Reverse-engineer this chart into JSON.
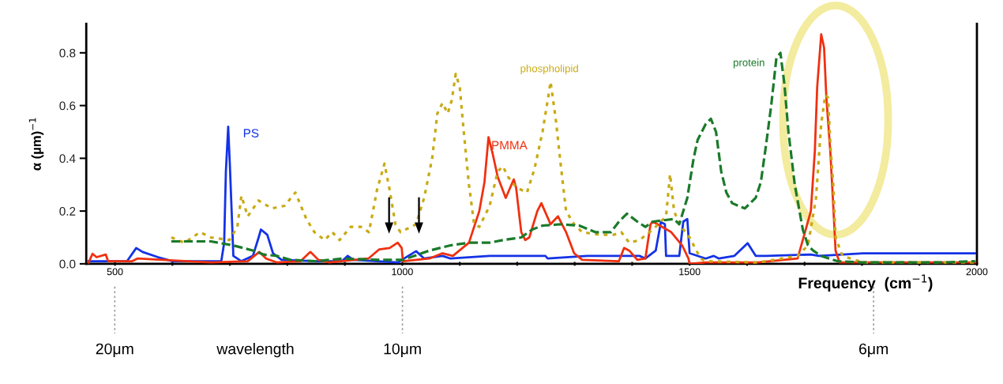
{
  "chart_data": {
    "type": "line",
    "xlabel": "Frequency  (cm$^{−1}$)",
    "ylabel": "α (µm)$^{−1}$",
    "xlim": [
      450,
      2000
    ],
    "ylim": [
      0,
      0.91
    ],
    "xticks": [
      500,
      {
        "value": 600,
        "label": null
      },
      {
        "value": 700,
        "label": null
      },
      {
        "value": 800,
        "label": null
      },
      {
        "value": 900,
        "label": null
      },
      1000,
      {
        "value": 1100,
        "label": null
      },
      {
        "value": 1200,
        "label": null
      },
      {
        "value": 1300,
        "label": null
      },
      {
        "value": 1400,
        "label": null
      },
      1500,
      {
        "value": 1600,
        "label": null
      },
      {
        "value": 1700,
        "label": null
      },
      {
        "value": 1800,
        "label": null
      },
      {
        "value": 1900,
        "label": null
      },
      2000
    ],
    "yticks": [
      {
        "value": 0,
        "label": "0.0"
      },
      {
        "value": 0.2,
        "label": "0.2"
      },
      {
        "value": 0.4,
        "label": "0.4"
      },
      {
        "value": 0.6,
        "label": "0.6"
      },
      {
        "value": 0.8,
        "label": "0.8"
      }
    ],
    "annotations": [
      "20μm",
      "wavelength",
      "10μm",
      "6μm"
    ],
    "grid": false,
    "marker": "none",
    "series": [
      {
        "name": "PS",
        "color": "#1432e6",
        "line_style": "solid",
        "x": [
          454,
          521,
          537,
          548,
          575,
          600,
          685,
          690,
          693,
          697,
          700,
          703,
          706,
          720,
          740,
          750,
          754,
          765,
          775,
          790,
          850,
          895,
          905,
          915,
          933,
          992,
          1024,
          1038,
          1070,
          1084,
          1152,
          1249,
          1253,
          1322,
          1413,
          1423,
          1441,
          1450,
          1457,
          1459,
          1482,
          1489,
          1496,
          1500,
          1528,
          1542,
          1551,
          1578,
          1601,
          1615,
          1633,
          1711,
          1725,
          1802,
          1940,
          1997
        ],
        "values": [
          0.01,
          0.01,
          0.06,
          0.045,
          0.025,
          0.01,
          0.01,
          0.08,
          0.35,
          0.52,
          0.37,
          0.2,
          0.03,
          0.01,
          0.03,
          0.1,
          0.13,
          0.11,
          0.04,
          0.015,
          0.01,
          0.01,
          0.03,
          0.015,
          0.013,
          0.005,
          0.048,
          0.02,
          0.03,
          0.02,
          0.03,
          0.03,
          0.02,
          0.03,
          0.03,
          0.02,
          0.05,
          0.158,
          0.15,
          0.03,
          0.03,
          0.16,
          0.17,
          0.04,
          0.02,
          0.03,
          0.02,
          0.03,
          0.078,
          0.03,
          0.03,
          0.035,
          0.03,
          0.04,
          0.04,
          0.04
        ]
      },
      {
        "name": "PMMA",
        "color": "#f03010",
        "line_style": "solid",
        "x": [
          454,
          461,
          468,
          484,
          488,
          530,
          539,
          667,
          731,
          751,
          763,
          782,
          823,
          840,
          854,
          873,
          941,
          960,
          978,
          992,
          999,
          1001,
          1047,
          1070,
          1088,
          1116,
          1134,
          1143,
          1150,
          1157,
          1166,
          1180,
          1194,
          1198,
          1207,
          1214,
          1221,
          1235,
          1242,
          1258,
          1271,
          1285,
          1299,
          1313,
          1377,
          1386,
          1395,
          1409,
          1423,
          1432,
          1436,
          1468,
          1487,
          1498,
          1500,
          1528,
          1619,
          1688,
          1711,
          1718,
          1722,
          1729,
          1734,
          1738,
          1745,
          1750,
          1754,
          1761,
          1997
        ],
        "values": [
          0.005,
          0.038,
          0.025,
          0.035,
          0.01,
          0.01,
          0.02,
          0.005,
          0.01,
          0.045,
          0.02,
          0.005,
          0.01,
          0.045,
          0.015,
          0.005,
          0.02,
          0.055,
          0.06,
          0.08,
          0.06,
          0.01,
          0.02,
          0.04,
          0.03,
          0.08,
          0.2,
          0.31,
          0.48,
          0.42,
          0.33,
          0.25,
          0.32,
          0.29,
          0.12,
          0.09,
          0.1,
          0.2,
          0.23,
          0.15,
          0.18,
          0.12,
          0.04,
          0.015,
          0.01,
          0.06,
          0.05,
          0.015,
          0.02,
          0.15,
          0.16,
          0.12,
          0.07,
          0.02,
          0.0,
          0.005,
          0.005,
          0.02,
          0.2,
          0.43,
          0.67,
          0.87,
          0.82,
          0.63,
          0.42,
          0.22,
          0.05,
          0.005,
          0.005
        ]
      },
      {
        "name": "phospholipid",
        "color": "#c8aa14",
        "line_style": "dotted",
        "x": [
          598,
          621,
          648,
          667,
          699,
          713,
          720,
          731,
          750,
          773,
          795,
          814,
          833,
          847,
          865,
          878,
          891,
          910,
          928,
          942,
          956,
          969,
          978,
          988,
          997,
          1024,
          1038,
          1052,
          1061,
          1070,
          1079,
          1086,
          1093,
          1100,
          1107,
          1116,
          1125,
          1134,
          1152,
          1166,
          1175,
          1184,
          1198,
          1217,
          1230,
          1244,
          1253,
          1258,
          1267,
          1276,
          1285,
          1299,
          1313,
          1345,
          1368,
          1381,
          1395,
          1413,
          1436,
          1459,
          1466,
          1473,
          1482,
          1500,
          1519,
          1528,
          1619,
          1688,
          1706,
          1720,
          1729,
          1736,
          1741,
          1745,
          1750,
          1754,
          1766,
          1802,
          1997
        ],
        "values": [
          0.1,
          0.08,
          0.12,
          0.1,
          0.09,
          0.14,
          0.258,
          0.18,
          0.24,
          0.21,
          0.22,
          0.27,
          0.17,
          0.12,
          0.09,
          0.12,
          0.09,
          0.14,
          0.14,
          0.12,
          0.28,
          0.38,
          0.28,
          0.15,
          0.12,
          0.15,
          0.25,
          0.4,
          0.57,
          0.61,
          0.57,
          0.62,
          0.72,
          0.67,
          0.5,
          0.3,
          0.15,
          0.14,
          0.22,
          0.35,
          0.37,
          0.33,
          0.29,
          0.27,
          0.36,
          0.5,
          0.62,
          0.69,
          0.55,
          0.37,
          0.2,
          0.15,
          0.12,
          0.11,
          0.11,
          0.12,
          0.08,
          0.09,
          0.13,
          0.18,
          0.34,
          0.2,
          0.15,
          0.1,
          0.02,
          0.01,
          0.005,
          0.03,
          0.07,
          0.25,
          0.53,
          0.64,
          0.63,
          0.45,
          0.3,
          0.1,
          0.03,
          0.005,
          0.005
        ]
      },
      {
        "name": "protein",
        "color": "#1a7a2a",
        "line_style": "dashed",
        "x": [
          598,
          667,
          705,
          723,
          741,
          759,
          782,
          805,
          851,
          896,
          960,
          1001,
          1047,
          1084,
          1116,
          1152,
          1175,
          1207,
          1226,
          1244,
          1276,
          1308,
          1336,
          1363,
          1377,
          1391,
          1409,
          1423,
          1436,
          1473,
          1482,
          1496,
          1507,
          1514,
          1528,
          1537,
          1546,
          1555,
          1564,
          1574,
          1596,
          1615,
          1624,
          1633,
          1642,
          1651,
          1658,
          1665,
          1672,
          1683,
          1697,
          1706,
          1715,
          1729,
          1757,
          1802,
          1940,
          1997
        ],
        "values": [
          0.085,
          0.085,
          0.07,
          0.06,
          0.05,
          0.035,
          0.03,
          0.015,
          0.01,
          0.02,
          0.015,
          0.015,
          0.05,
          0.07,
          0.08,
          0.08,
          0.09,
          0.1,
          0.13,
          0.145,
          0.15,
          0.145,
          0.12,
          0.12,
          0.16,
          0.19,
          0.16,
          0.14,
          0.16,
          0.17,
          0.15,
          0.25,
          0.4,
          0.47,
          0.53,
          0.55,
          0.5,
          0.35,
          0.27,
          0.23,
          0.21,
          0.25,
          0.31,
          0.45,
          0.6,
          0.78,
          0.8,
          0.68,
          0.5,
          0.3,
          0.13,
          0.07,
          0.05,
          0.03,
          0.01,
          0.005,
          0.005,
          0.01
        ]
      }
    ]
  }
}
